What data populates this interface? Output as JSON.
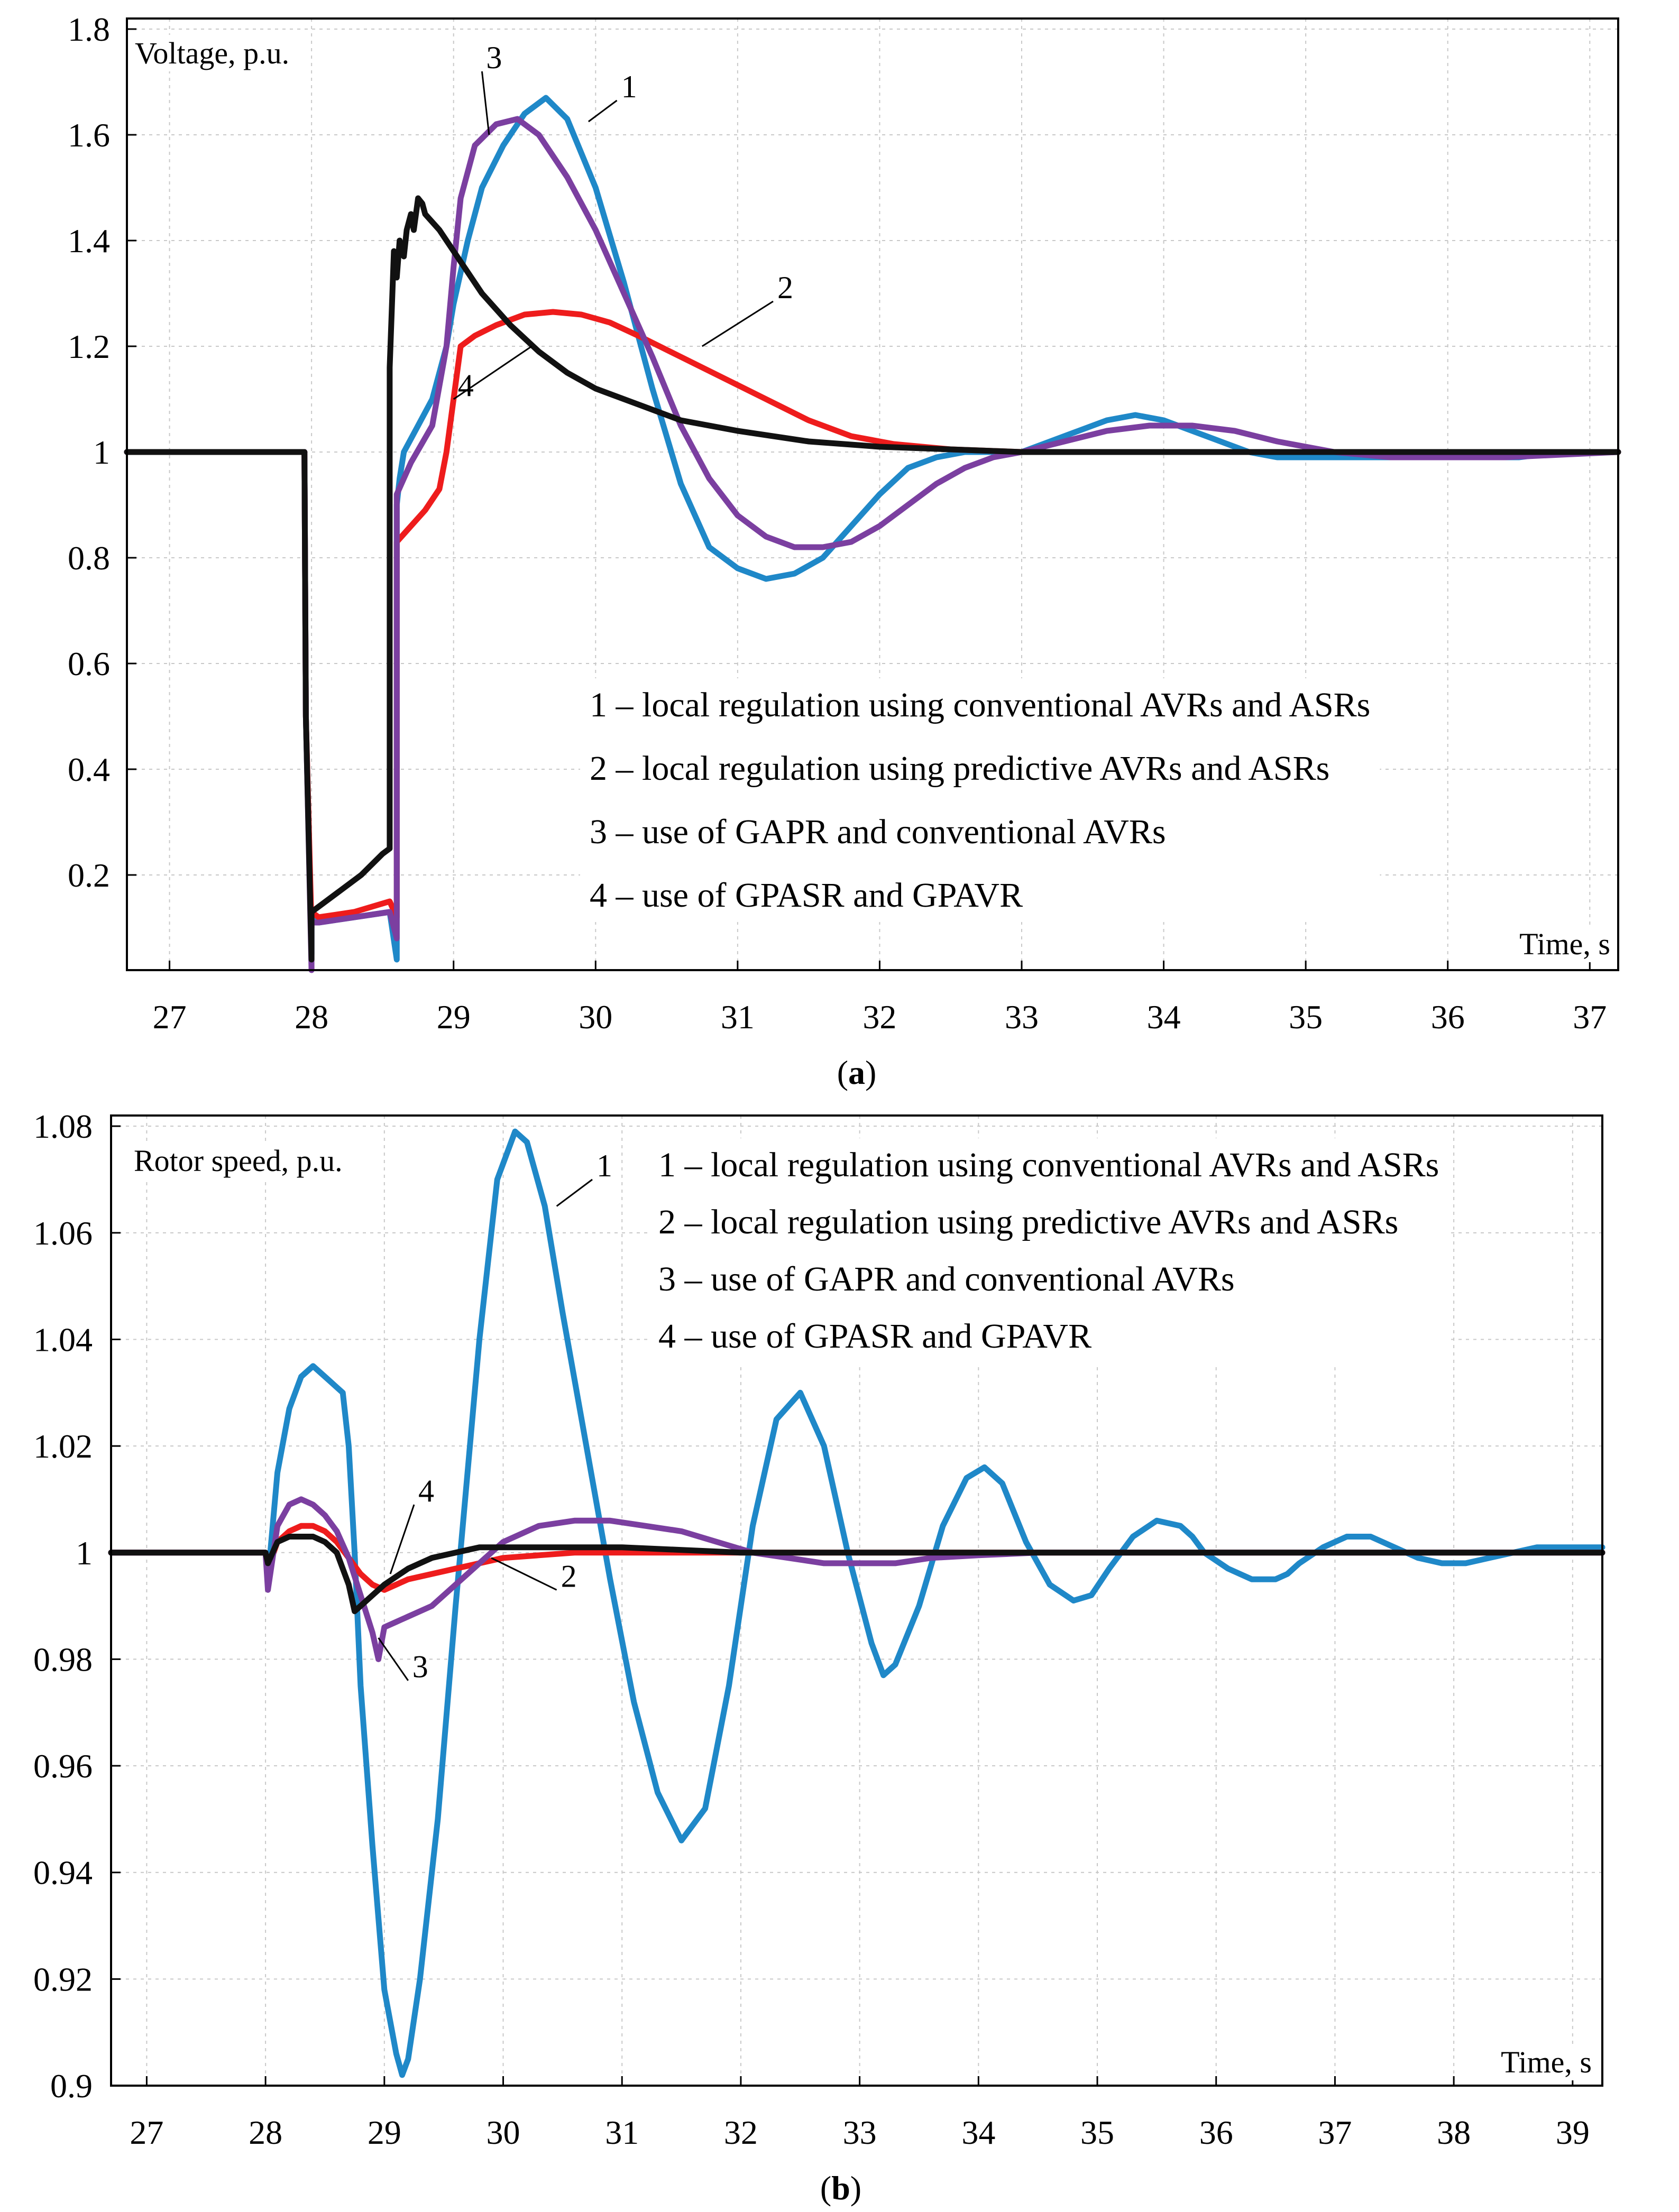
{
  "chart_data": [
    {
      "type": "line",
      "panel": "a",
      "caption_open": "(",
      "caption_letter": "a",
      "caption_close": ")",
      "title": "",
      "ylabel": "Voltage, p.u.",
      "xlabel": "Time, s",
      "xlim": [
        26.7,
        37.2
      ],
      "ylim": [
        0.02,
        1.82
      ],
      "xticks": [
        27,
        28,
        29,
        30,
        31,
        32,
        33,
        34,
        35,
        36,
        37
      ],
      "yticks": [
        0.2,
        0.4,
        0.6,
        0.8,
        1,
        1.2,
        1.4,
        1.6,
        1.8
      ],
      "ytick_labels": [
        "0.2",
        "0.4",
        "0.6",
        "0.8",
        "1",
        "1.2",
        "1.4",
        "1.6",
        "1.8"
      ],
      "grid": true,
      "legend_position": "lower-right",
      "legend": [
        "1 – local regulation using conventional AVRs and ASRs",
        "2 – local regulation using predictive AVRs and ASRs",
        "3 – use of GAPR and conventional AVRs",
        "4 – use of GPASR and GPAVR"
      ],
      "series": [
        {
          "name": "1",
          "color": "#1f88c8",
          "x": [
            26.7,
            27.95,
            27.96,
            28.0,
            28.0,
            28.05,
            28.3,
            28.55,
            28.6,
            28.6,
            28.62,
            28.65,
            28.75,
            28.85,
            28.95,
            29.0,
            29.1,
            29.2,
            29.35,
            29.5,
            29.65,
            29.8,
            30.0,
            30.2,
            30.4,
            30.6,
            30.8,
            31.0,
            31.2,
            31.4,
            31.6,
            31.8,
            32.0,
            32.2,
            32.4,
            32.6,
            32.8,
            33.0,
            33.2,
            33.4,
            33.6,
            33.8,
            34.0,
            34.2,
            34.4,
            34.6,
            34.8,
            35.0,
            35.3,
            35.6,
            35.9,
            36.2,
            36.5,
            36.8,
            37.2
          ],
          "values": [
            1,
            1,
            0.5,
            0.05,
            0.12,
            0.11,
            0.12,
            0.13,
            0.04,
            0.9,
            0.95,
            1.0,
            1.05,
            1.1,
            1.2,
            1.28,
            1.4,
            1.5,
            1.58,
            1.64,
            1.67,
            1.63,
            1.5,
            1.32,
            1.12,
            0.94,
            0.82,
            0.78,
            0.76,
            0.77,
            0.8,
            0.86,
            0.92,
            0.97,
            0.99,
            1.0,
            1.0,
            1.0,
            1.02,
            1.04,
            1.06,
            1.07,
            1.06,
            1.04,
            1.02,
            1.0,
            0.99,
            0.99,
            0.99,
            0.99,
            0.99,
            0.99,
            0.99,
            1.0,
            1.0
          ]
        },
        {
          "name": "2",
          "color": "#ee1c1c",
          "x": [
            26.7,
            27.95,
            27.96,
            28.0,
            28.0,
            28.05,
            28.3,
            28.55,
            28.6,
            28.6,
            28.7,
            28.8,
            28.9,
            28.95,
            29.0,
            29.05,
            29.15,
            29.3,
            29.5,
            29.7,
            29.9,
            30.1,
            30.3,
            30.6,
            30.9,
            31.2,
            31.5,
            31.8,
            32.1,
            32.5,
            33.0,
            33.5,
            34.0,
            34.5,
            35.0,
            35.5,
            36.0,
            37.2
          ],
          "values": [
            1,
            1,
            0.5,
            0.1,
            0.13,
            0.12,
            0.13,
            0.15,
            0.12,
            0.83,
            0.86,
            0.89,
            0.93,
            1.0,
            1.1,
            1.2,
            1.22,
            1.24,
            1.26,
            1.265,
            1.26,
            1.245,
            1.22,
            1.18,
            1.14,
            1.1,
            1.06,
            1.03,
            1.015,
            1.005,
            1.0,
            1.0,
            1.0,
            1.0,
            1.0,
            1.0,
            1.0,
            1.0
          ]
        },
        {
          "name": "3",
          "color": "#7b3fa0",
          "x": [
            26.7,
            27.95,
            27.96,
            28.0,
            28.0,
            28.05,
            28.3,
            28.55,
            28.6,
            28.6,
            28.7,
            28.85,
            28.95,
            29.0,
            29.05,
            29.15,
            29.3,
            29.45,
            29.6,
            29.8,
            30.0,
            30.2,
            30.4,
            30.6,
            30.8,
            31.0,
            31.2,
            31.4,
            31.6,
            31.8,
            32.0,
            32.2,
            32.4,
            32.6,
            32.8,
            33.0,
            33.3,
            33.6,
            33.9,
            34.2,
            34.5,
            34.8,
            35.2,
            35.6,
            36.0,
            36.4,
            36.8,
            37.2
          ],
          "values": [
            1,
            1,
            0.5,
            0.02,
            0.11,
            0.11,
            0.12,
            0.13,
            0.08,
            0.92,
            0.98,
            1.05,
            1.2,
            1.35,
            1.48,
            1.58,
            1.62,
            1.63,
            1.6,
            1.52,
            1.42,
            1.3,
            1.18,
            1.05,
            0.95,
            0.88,
            0.84,
            0.82,
            0.82,
            0.83,
            0.86,
            0.9,
            0.94,
            0.97,
            0.99,
            1.0,
            1.02,
            1.04,
            1.05,
            1.05,
            1.04,
            1.02,
            1.0,
            0.99,
            0.99,
            0.99,
            0.995,
            1.0
          ]
        },
        {
          "name": "4",
          "color": "#111111",
          "x": [
            26.7,
            27.95,
            27.96,
            28.0,
            28.0,
            28.05,
            28.2,
            28.35,
            28.5,
            28.55,
            28.55,
            28.58,
            28.6,
            28.62,
            28.65,
            28.67,
            28.7,
            28.72,
            28.75,
            28.78,
            28.8,
            28.9,
            29.0,
            29.2,
            29.4,
            29.6,
            29.8,
            30.0,
            30.3,
            30.6,
            31.0,
            31.5,
            32.0,
            32.5,
            33.0,
            33.5,
            34.0,
            35.0,
            36.0,
            37.2
          ],
          "values": [
            1,
            1,
            0.5,
            0.04,
            0.13,
            0.14,
            0.17,
            0.2,
            0.24,
            0.25,
            1.16,
            1.38,
            1.33,
            1.4,
            1.37,
            1.42,
            1.45,
            1.42,
            1.48,
            1.47,
            1.45,
            1.42,
            1.38,
            1.3,
            1.24,
            1.19,
            1.15,
            1.12,
            1.09,
            1.06,
            1.04,
            1.02,
            1.01,
            1.005,
            1.0,
            1.0,
            1.0,
            1.0,
            1.0,
            1.0
          ]
        }
      ],
      "annotations": [
        {
          "label": "1",
          "at": [
            29.95,
            1.625
          ],
          "text_at": [
            30.15,
            1.665
          ]
        },
        {
          "label": "2",
          "at": [
            30.75,
            1.2
          ],
          "text_at": [
            31.25,
            1.285
          ]
        },
        {
          "label": "3",
          "at": [
            29.25,
            1.6
          ],
          "text_at": [
            29.2,
            1.72
          ]
        },
        {
          "label": "4",
          "at": [
            29.55,
            1.2
          ],
          "text_at": [
            29.0,
            1.1
          ]
        }
      ]
    },
    {
      "type": "line",
      "panel": "b",
      "caption_open": "(",
      "caption_letter": "b",
      "caption_close": ")",
      "title": "",
      "ylabel": "Rotor speed, p.u.",
      "xlabel": "Time, s",
      "xlim": [
        26.7,
        39.25
      ],
      "ylim": [
        0.9,
        1.082
      ],
      "xticks": [
        27,
        28,
        29,
        30,
        31,
        32,
        33,
        34,
        35,
        36,
        37,
        38,
        39
      ],
      "yticks": [
        0.9,
        0.92,
        0.94,
        0.96,
        0.98,
        1,
        1.02,
        1.04,
        1.06,
        1.08
      ],
      "ytick_labels": [
        "0.9",
        "0.92",
        "0.94",
        "0.96",
        "0.98",
        "1",
        "1.02",
        "1.04",
        "1.06",
        "1.08"
      ],
      "grid": true,
      "legend_position": "top-right",
      "legend": [
        "1 – local regulation using conventional AVRs and ASRs",
        "2 – local regulation using predictive AVRs and ASRs",
        "3 – use of GAPR and conventional AVRs",
        "4 – use of GPASR and GPAVR"
      ],
      "series": [
        {
          "name": "1",
          "color": "#1f88c8",
          "x": [
            26.7,
            28.0,
            28.02,
            28.1,
            28.2,
            28.3,
            28.4,
            28.5,
            28.55,
            28.6,
            28.65,
            28.7,
            28.75,
            28.8,
            28.9,
            29.0,
            29.1,
            29.15,
            29.2,
            29.3,
            29.45,
            29.6,
            29.8,
            29.95,
            30.1,
            30.2,
            30.35,
            30.5,
            30.7,
            30.9,
            31.1,
            31.3,
            31.5,
            31.7,
            31.9,
            32.1,
            32.3,
            32.5,
            32.7,
            32.9,
            33.1,
            33.2,
            33.3,
            33.5,
            33.7,
            33.9,
            34.05,
            34.2,
            34.4,
            34.6,
            34.8,
            34.95,
            35.1,
            35.3,
            35.5,
            35.7,
            35.8,
            35.9,
            36.1,
            36.3,
            36.5,
            36.6,
            36.7,
            36.9,
            37.1,
            37.3,
            37.5,
            37.7,
            37.9,
            38.1,
            38.3,
            38.5,
            38.7,
            38.9,
            39.1,
            39.25
          ],
          "values": [
            1,
            1,
            0.995,
            1.015,
            1.027,
            1.033,
            1.035,
            1.033,
            1.032,
            1.031,
            1.03,
            1.02,
            1.0,
            0.975,
            0.945,
            0.918,
            0.906,
            0.902,
            0.905,
            0.92,
            0.95,
            0.99,
            1.04,
            1.07,
            1.079,
            1.077,
            1.065,
            1.045,
            1.02,
            0.995,
            0.972,
            0.955,
            0.946,
            0.952,
            0.975,
            1.005,
            1.025,
            1.03,
            1.02,
            1.0,
            0.983,
            0.977,
            0.979,
            0.99,
            1.005,
            1.014,
            1.016,
            1.013,
            1.002,
            0.994,
            0.991,
            0.992,
            0.997,
            1.003,
            1.006,
            1.005,
            1.003,
            1.0,
            0.997,
            0.995,
            0.995,
            0.996,
            0.998,
            1.001,
            1.003,
            1.003,
            1.001,
            0.999,
            0.998,
            0.998,
            0.999,
            1.0,
            1.001,
            1.001,
            1.001,
            1.001
          ]
        },
        {
          "name": "2",
          "color": "#ee1c1c",
          "x": [
            26.7,
            28.0,
            28.02,
            28.1,
            28.2,
            28.3,
            28.4,
            28.5,
            28.6,
            28.7,
            28.8,
            28.9,
            29.0,
            29.1,
            29.2,
            29.4,
            29.6,
            29.8,
            30.0,
            30.3,
            30.6,
            31.0,
            31.5,
            32.0,
            33.0,
            34.0,
            39.25
          ],
          "values": [
            1,
            1,
            0.997,
            1.002,
            1.004,
            1.005,
            1.005,
            1.004,
            1.002,
            0.999,
            0.996,
            0.994,
            0.993,
            0.994,
            0.995,
            0.996,
            0.997,
            0.998,
            0.999,
            0.9995,
            1.0,
            1.0,
            1.0,
            1.0,
            1.0,
            1.0,
            1.0
          ]
        },
        {
          "name": "3",
          "color": "#7b3fa0",
          "x": [
            26.7,
            28.0,
            28.02,
            28.1,
            28.2,
            28.3,
            28.4,
            28.5,
            28.6,
            28.7,
            28.8,
            28.9,
            28.95,
            29.0,
            29.1,
            29.2,
            29.4,
            29.6,
            29.8,
            30.0,
            30.3,
            30.6,
            30.9,
            31.2,
            31.5,
            31.8,
            32.1,
            32.4,
            32.7,
            33.0,
            33.3,
            33.6,
            34.0,
            34.5,
            35.0,
            35.5,
            36.0,
            37.0,
            38.0,
            39.25
          ],
          "values": [
            1,
            1,
            0.993,
            1.005,
            1.009,
            1.01,
            1.009,
            1.007,
            1.004,
            0.999,
            0.992,
            0.985,
            0.98,
            0.986,
            0.987,
            0.988,
            0.99,
            0.994,
            0.998,
            1.002,
            1.005,
            1.006,
            1.006,
            1.005,
            1.004,
            1.002,
            1.0,
            0.999,
            0.998,
            0.998,
            0.998,
            0.999,
            0.9995,
            1.0,
            1.0,
            1.0,
            1.0,
            1.0,
            1.0,
            1.0
          ]
        },
        {
          "name": "4",
          "color": "#111111",
          "x": [
            26.7,
            28.0,
            28.02,
            28.1,
            28.2,
            28.3,
            28.4,
            28.5,
            28.6,
            28.7,
            28.75,
            28.8,
            28.9,
            29.0,
            29.2,
            29.4,
            29.6,
            29.8,
            30.0,
            30.5,
            31.0,
            32.0,
            33.0,
            39.25
          ],
          "values": [
            1,
            1,
            0.998,
            1.002,
            1.003,
            1.003,
            1.003,
            1.002,
            1.0,
            0.994,
            0.989,
            0.99,
            0.992,
            0.994,
            0.997,
            0.999,
            1.0,
            1.001,
            1.001,
            1.001,
            1.001,
            1.0,
            1.0,
            1.0
          ]
        }
      ],
      "annotations": [
        {
          "label": "1",
          "at": [
            30.45,
            1.065
          ],
          "text_at": [
            30.75,
            1.07
          ]
        },
        {
          "label": "2",
          "at": [
            29.9,
            0.999
          ],
          "text_at": [
            30.45,
            0.993
          ]
        },
        {
          "label": "3",
          "at": [
            28.95,
            0.984
          ],
          "text_at": [
            29.2,
            0.976
          ]
        },
        {
          "label": "4",
          "at": [
            29.05,
            0.996
          ],
          "text_at": [
            29.25,
            1.009
          ]
        }
      ]
    }
  ]
}
